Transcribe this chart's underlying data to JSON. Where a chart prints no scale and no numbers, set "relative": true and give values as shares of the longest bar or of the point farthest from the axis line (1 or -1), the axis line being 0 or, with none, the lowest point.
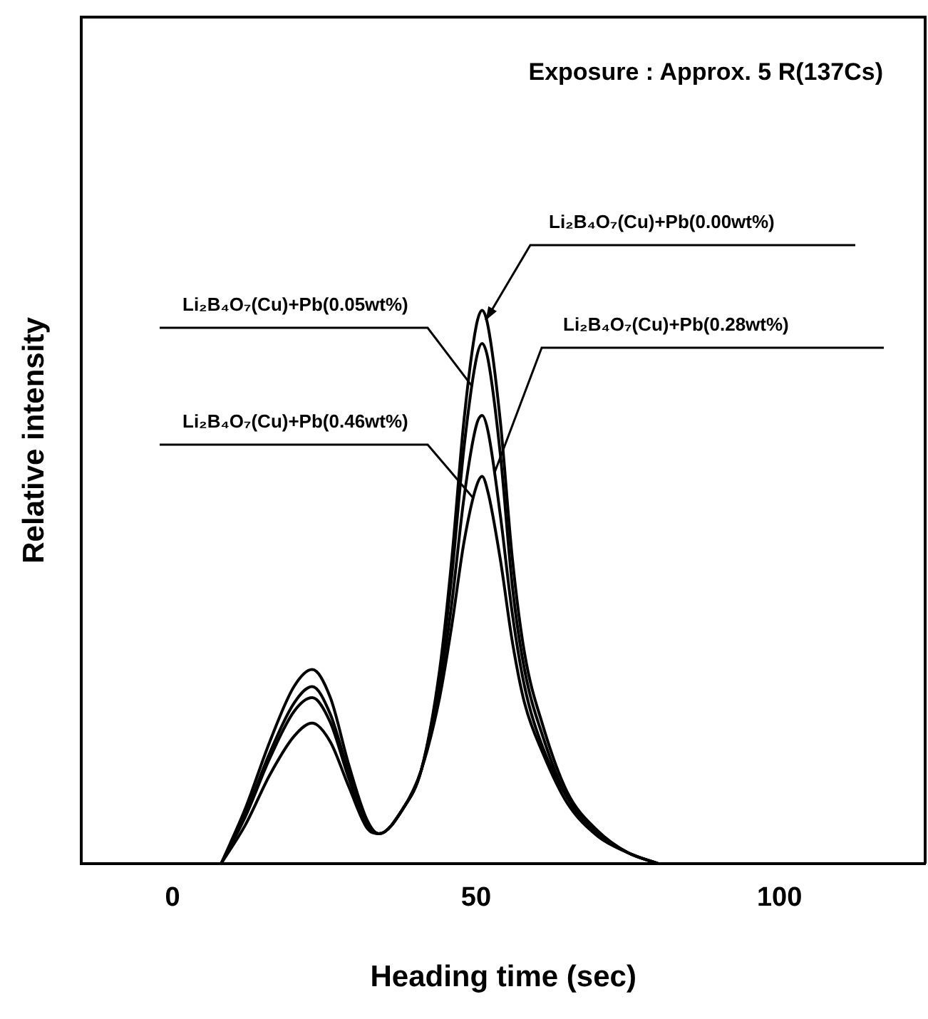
{
  "chart_data": {
    "type": "line",
    "xlabel": "Heading time (sec)",
    "ylabel": "Relative intensity",
    "relative": true,
    "xlim": [
      -15,
      124
    ],
    "xticks": [
      0,
      50,
      100
    ],
    "grid": false,
    "legend": false,
    "marker": "none",
    "line_style": "solid",
    "annotations": [
      "Exposure : Approx. 5 R(137Cs)"
    ],
    "series": [
      {
        "name": "Li₂B₄O₇(Cu)+Pb(0.00wt%)",
        "color": "#000000",
        "x": [
          8,
          12,
          16,
          20,
          23,
          26,
          29,
          32,
          34,
          38,
          41,
          44,
          46,
          48,
          50,
          51,
          52,
          54,
          56,
          58,
          61,
          65,
          70,
          75,
          80
        ],
        "values": [
          0,
          0.1,
          0.22,
          0.32,
          0.351,
          0.3,
          0.18,
          0.08,
          0.054,
          0.1,
          0.17,
          0.35,
          0.55,
          0.8,
          0.97,
          1,
          0.97,
          0.8,
          0.55,
          0.38,
          0.25,
          0.13,
          0.06,
          0.02,
          0
        ]
      },
      {
        "name": "Li₂B₄O₇(Cu)+Pb(0.05wt%)",
        "color": "#000000",
        "x": [
          8,
          12,
          16,
          20,
          23,
          26,
          29,
          32,
          34,
          38,
          41,
          44,
          46,
          48,
          50,
          51,
          52,
          54,
          56,
          58,
          61,
          65,
          70,
          75,
          80
        ],
        "values": [
          0,
          0.09,
          0.2,
          0.29,
          0.32,
          0.27,
          0.165,
          0.075,
          0.054,
          0.1,
          0.17,
          0.34,
          0.52,
          0.75,
          0.91,
          0.94,
          0.91,
          0.74,
          0.5,
          0.35,
          0.23,
          0.12,
          0.055,
          0.02,
          0
        ]
      },
      {
        "name": "Li₂B₄O₇(Cu)+Pb(0.28wt%)",
        "color": "#000000",
        "x": [
          8,
          12,
          16,
          20,
          23,
          26,
          29,
          32,
          34,
          38,
          41,
          44,
          46,
          48,
          50,
          51,
          52,
          54,
          56,
          58,
          61,
          65,
          70,
          75,
          80
        ],
        "values": [
          0,
          0.085,
          0.19,
          0.275,
          0.3,
          0.255,
          0.155,
          0.07,
          0.054,
          0.1,
          0.17,
          0.32,
          0.47,
          0.66,
          0.79,
          0.81,
          0.78,
          0.63,
          0.45,
          0.32,
          0.21,
          0.12,
          0.055,
          0.02,
          0
        ]
      },
      {
        "name": "Li₂B₄O₇(Cu)+Pb(0.46wt%)",
        "color": "#000000",
        "x": [
          8,
          12,
          16,
          20,
          23,
          26,
          29,
          32,
          34,
          38,
          41,
          44,
          46,
          48,
          50,
          51,
          52,
          54,
          56,
          58,
          61,
          65,
          70,
          75,
          80
        ],
        "values": [
          0,
          0.07,
          0.16,
          0.23,
          0.254,
          0.22,
          0.14,
          0.065,
          0.054,
          0.1,
          0.17,
          0.3,
          0.43,
          0.58,
          0.68,
          0.7,
          0.67,
          0.55,
          0.4,
          0.29,
          0.2,
          0.11,
          0.05,
          0.02,
          0
        ]
      }
    ]
  }
}
